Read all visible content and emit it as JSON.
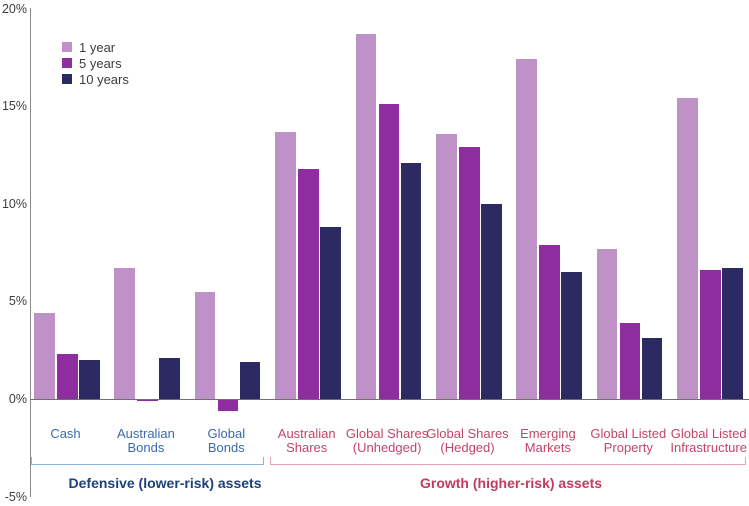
{
  "chart_data": {
    "type": "bar",
    "title": "",
    "xlabel": "",
    "ylabel": "",
    "ylim": [
      -5,
      20
    ],
    "yticks": [
      20,
      15,
      10,
      5,
      0,
      -5
    ],
    "ytick_suffix": "%",
    "grid": false,
    "legend_position": "top-left",
    "categories": [
      "Cash",
      "Australian\nBonds",
      "Global\nBonds",
      "Australian\nShares",
      "Global Shares\n(Unhedged)",
      "Global Shares\n(Hedged)",
      "Emerging\nMarkets",
      "Global Listed\nProperty",
      "Global Listed\nInfrastructure"
    ],
    "series": [
      {
        "name": "1 year",
        "color": "#BE92C7",
        "values": [
          4.4,
          6.7,
          5.5,
          13.7,
          18.7,
          13.6,
          17.4,
          7.7,
          15.4
        ]
      },
      {
        "name": "5 years",
        "color": "#8D2D9E",
        "values": [
          2.3,
          -0.1,
          -0.6,
          11.8,
          15.1,
          12.9,
          7.9,
          3.9,
          6.6
        ]
      },
      {
        "name": "10 years",
        "color": "#2B2A62",
        "values": [
          2.0,
          2.1,
          1.9,
          8.8,
          12.1,
          10.0,
          6.5,
          3.1,
          6.7
        ]
      }
    ],
    "groups": [
      {
        "label": "Defensive (lower-risk) assets",
        "category_count": 3,
        "label_color": "#1D4077",
        "category_color": "#3A6AB0",
        "bracket_color": "#8FB2DA"
      },
      {
        "label": "Growth (higher-risk) assets",
        "category_count": 6,
        "label_color": "#C13A60",
        "category_color": "#C34568",
        "bracket_color": "#E8A2B5"
      }
    ],
    "axis_line_color": "#8a8a8a",
    "zero_line_color": "#6e6e6e"
  }
}
